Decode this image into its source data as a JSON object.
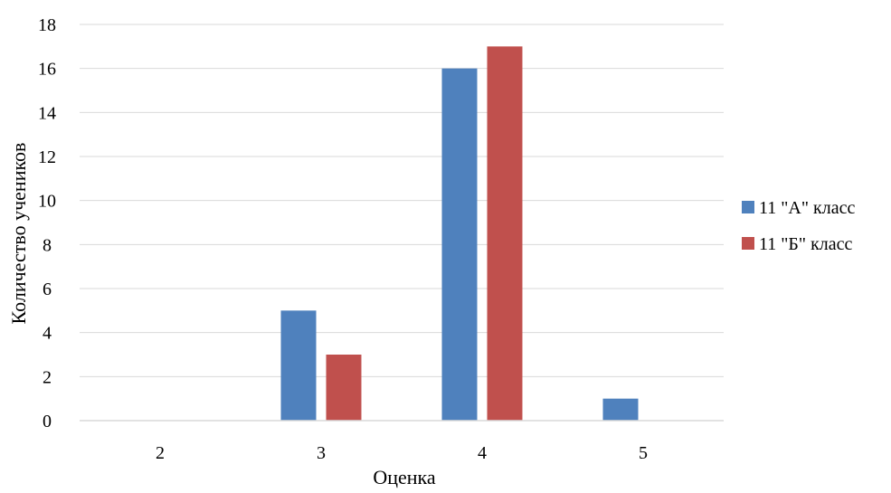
{
  "chart_data": {
    "type": "bar",
    "title": "",
    "xlabel": "Оценка",
    "ylabel": "Количество учеников",
    "categories": [
      "2",
      "3",
      "4",
      "5"
    ],
    "ylim": [
      0,
      18
    ],
    "yticks": [
      0,
      2,
      4,
      6,
      8,
      10,
      12,
      14,
      16,
      18
    ],
    "grid": true,
    "legend_position": "right",
    "series": [
      {
        "name": "11 \"А\" класс",
        "color": "#4F81BD",
        "values": [
          0,
          5,
          16,
          1
        ]
      },
      {
        "name": "11 \"Б\" класс",
        "color": "#C0504D",
        "values": [
          0,
          3,
          17,
          0
        ]
      }
    ]
  }
}
